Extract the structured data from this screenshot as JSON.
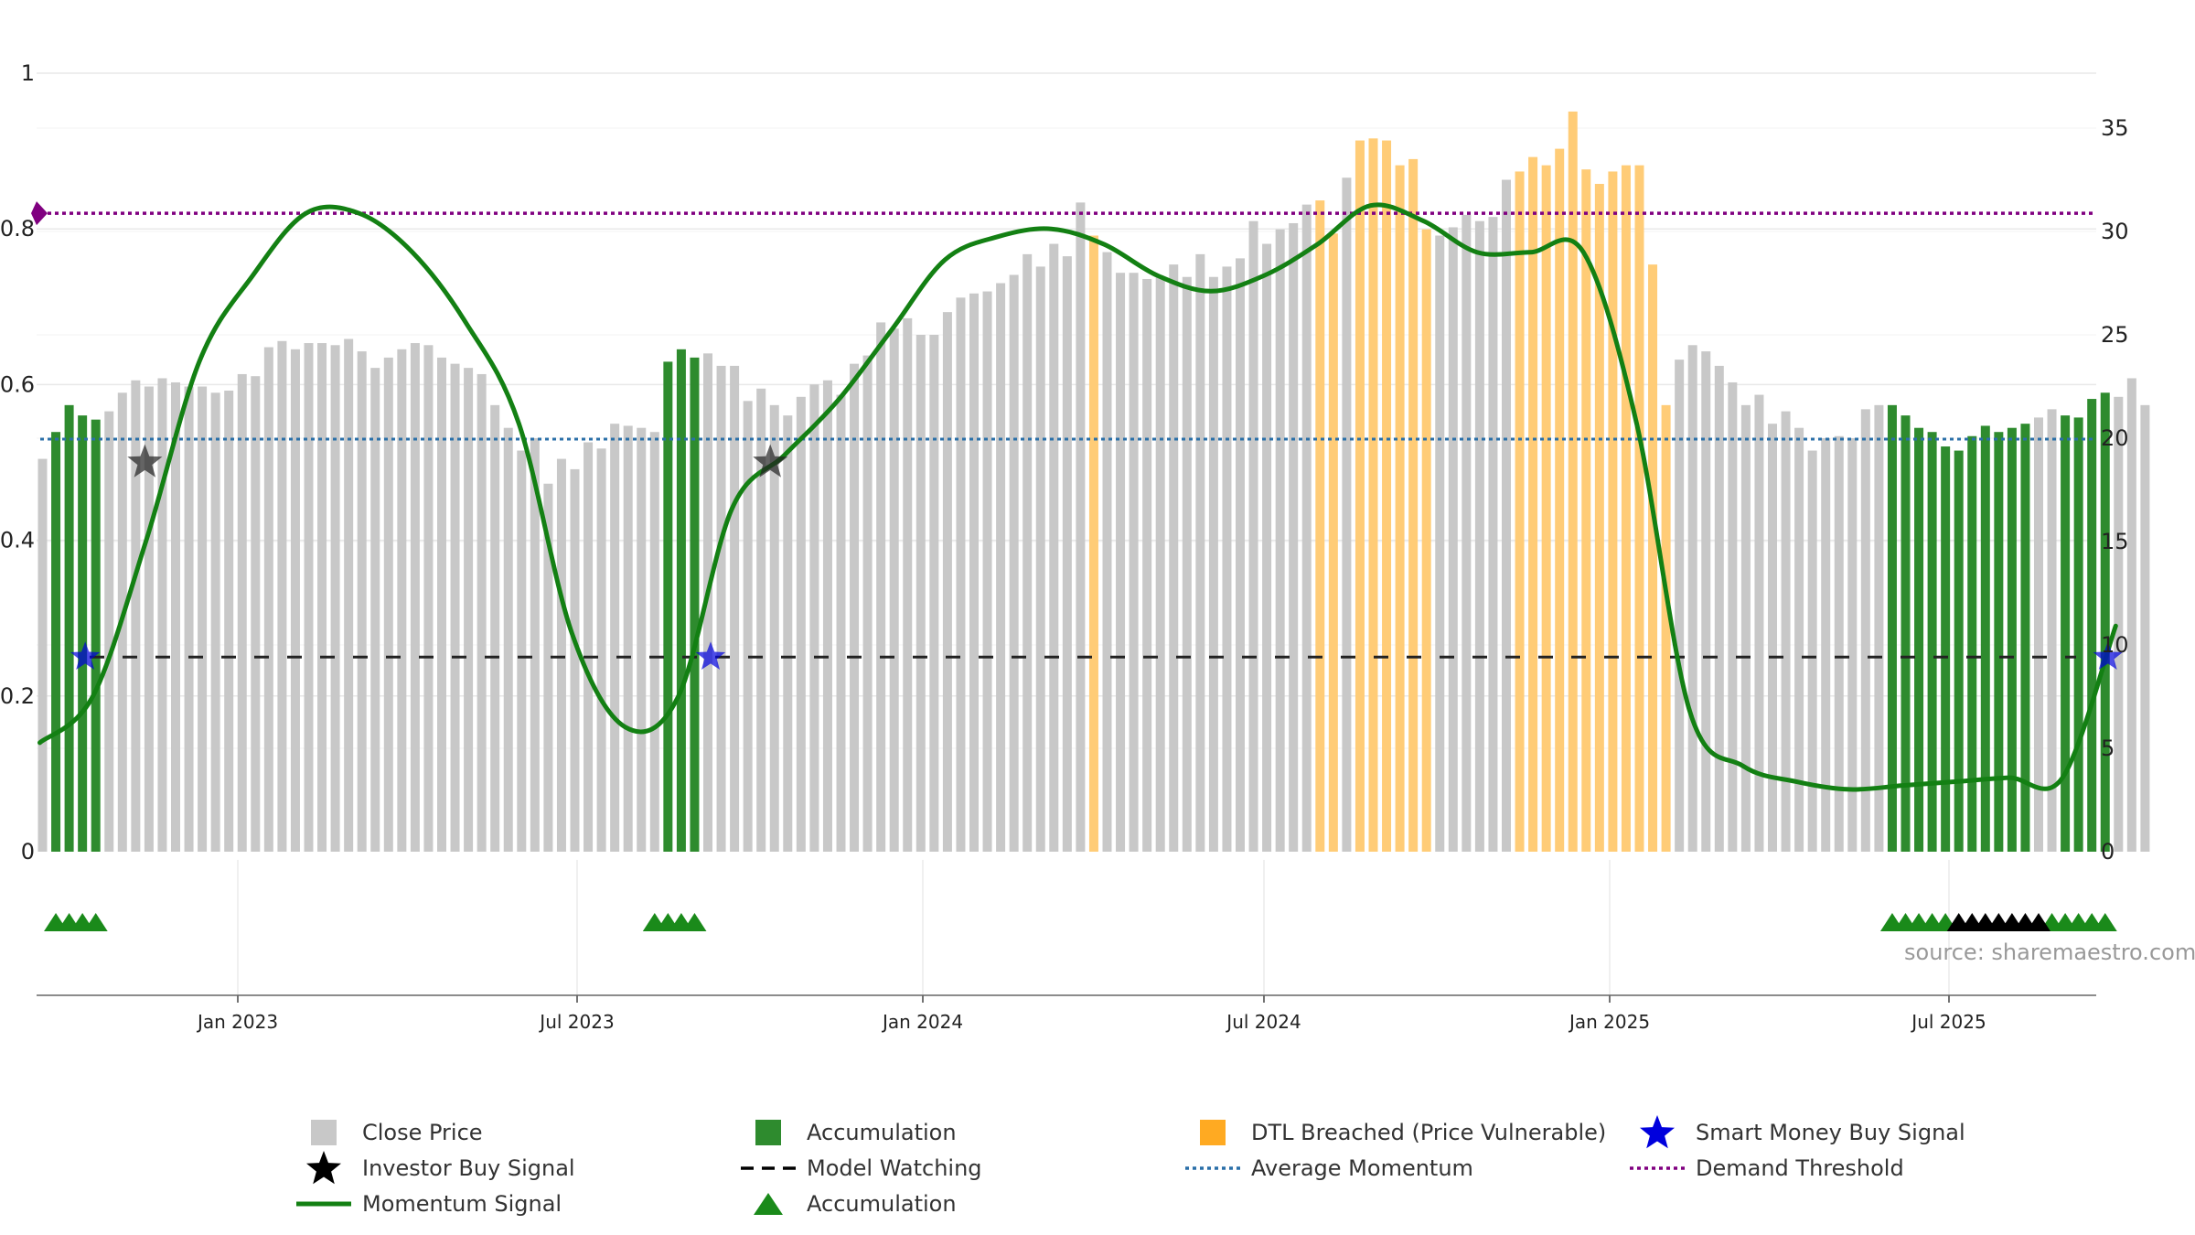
{
  "source_text": "source: sharemaestro.com",
  "colors": {
    "close": "#c8c8c8",
    "accumulation": "#2e8b2e",
    "dtl": "#ffcc77",
    "momentum": "#138013",
    "average": "#2a6fa8",
    "demand": "#800080",
    "model_watching": "#222222",
    "smart_money": "#0000dd",
    "investor": "#222222",
    "triangle_green": "#1a8a1a",
    "triangle_black": "#000000",
    "grid": "#e8e8e8"
  },
  "legend": [
    {
      "label": "Close Price",
      "icon": "square-gray"
    },
    {
      "label": "Accumulation",
      "icon": "square-green"
    },
    {
      "label": "DTL Breached (Price Vulnerable)",
      "icon": "square-orange"
    },
    {
      "label": "Smart Money Buy Signal",
      "icon": "star-blue"
    },
    {
      "label": "Investor Buy Signal",
      "icon": "star-black"
    },
    {
      "label": "Model Watching",
      "icon": "dash-black"
    },
    {
      "label": "Average Momentum",
      "icon": "dot-blue"
    },
    {
      "label": "Demand Threshold",
      "icon": "dot-purple"
    },
    {
      "label": "Momentum Signal",
      "icon": "line-green"
    },
    {
      "label": "Accumulation",
      "icon": "triangle-green"
    }
  ],
  "chart_data": {
    "type": "bar",
    "x_axis": {
      "tick_labels": [
        "Jan 2023",
        "Jul 2023",
        "Jan 2024",
        "Jul 2024",
        "Jan 2025",
        "Jul 2025"
      ]
    },
    "y_left": {
      "range": [
        0,
        1
      ],
      "tick_labels": [
        "0",
        "0.2",
        "0.4",
        "0.6",
        "0.8",
        "1"
      ]
    },
    "y_right": {
      "range": [
        0,
        38
      ],
      "tick_labels": [
        "0",
        "5",
        "10",
        "15",
        "20",
        "25",
        "30",
        "35"
      ]
    },
    "close_price": [
      19,
      20.3,
      21.6,
      21.1,
      20.9,
      21.3,
      22.2,
      22.8,
      22.5,
      22.9,
      22.7,
      22.5,
      22.5,
      22.2,
      22.3,
      23.1,
      23,
      24.4,
      24.7,
      24.3,
      24.6,
      24.6,
      24.5,
      24.8,
      24.2,
      23.4,
      23.9,
      24.3,
      24.6,
      24.5,
      23.9,
      23.6,
      23.4,
      23.1,
      21.6,
      20.5,
      19.4,
      20,
      17.8,
      19,
      18.5,
      19.8,
      19.5,
      20.7,
      20.6,
      20.5,
      20.3,
      23.7,
      24.3,
      23.9,
      24.1,
      23.5,
      23.5,
      21.8,
      22.4,
      21.6,
      21.1,
      22,
      22.6,
      22.8,
      22.1,
      23.6,
      24,
      25.6,
      25.3,
      25.8,
      25,
      25,
      26.1,
      26.8,
      27,
      27.1,
      27.5,
      27.9,
      28.9,
      28.3,
      29.4,
      28.8,
      31.4,
      29.8,
      29,
      28,
      28,
      27.7,
      27.8,
      28.4,
      27.8,
      28.9,
      27.8,
      28.3,
      28.7,
      30.5,
      29.4,
      30.1,
      30.4,
      31.3,
      31.5,
      29.9,
      32.6,
      34.4,
      34.5,
      34.4,
      33.2,
      33.5,
      30.1,
      29.8,
      30.2,
      30.8,
      30.5,
      30.7,
      32.5,
      32.9,
      33.6,
      33.2,
      34,
      35.8,
      33,
      32.3,
      32.9,
      33.2,
      33.2,
      28.4,
      21.6,
      23.8,
      24.5,
      24.2,
      23.5,
      22.7,
      21.6,
      22.1,
      20.7,
      21.3,
      20.5,
      19.4,
      20,
      20.1,
      20,
      21.4,
      21.6,
      21.6,
      21.1,
      20.5,
      20.3,
      19.6,
      19.4,
      20.1,
      20.6,
      20.3,
      20.5,
      20.7,
      21,
      21.4,
      21.1,
      21,
      21.9,
      22.2,
      22,
      22.9,
      21.6
    ],
    "accumulation_bar_indices": [
      1,
      2,
      3,
      4,
      47,
      48,
      49,
      139,
      140,
      141,
      142,
      143,
      144,
      145,
      146,
      147,
      148,
      149,
      152,
      153,
      154,
      155
    ],
    "dtl_breached_bar_indices": [
      79,
      96,
      97,
      99,
      100,
      101,
      102,
      103,
      104,
      111,
      112,
      113,
      114,
      115,
      116,
      117,
      118,
      119,
      120,
      121,
      122
    ],
    "momentum_signal": {
      "x": [
        0,
        4,
        8,
        12,
        16,
        20,
        24,
        28,
        32,
        36,
        40,
        44,
        48,
        52,
        56,
        60,
        64,
        68,
        72,
        76,
        80,
        84,
        88,
        92,
        96,
        100,
        104,
        108,
        112,
        116,
        120,
        124,
        128,
        132,
        136,
        140,
        144,
        148,
        152,
        156
      ],
      "y": [
        0.14,
        0.2,
        0.4,
        0.63,
        0.74,
        0.82,
        0.82,
        0.77,
        0.68,
        0.55,
        0.28,
        0.16,
        0.2,
        0.44,
        0.51,
        0.58,
        0.67,
        0.76,
        0.79,
        0.8,
        0.78,
        0.74,
        0.72,
        0.74,
        0.78,
        0.83,
        0.81,
        0.77,
        0.77,
        0.77,
        0.55,
        0.18,
        0.11,
        0.09,
        0.08,
        0.085,
        0.09,
        0.095,
        0.095,
        0.29
      ]
    },
    "average_momentum": 0.53,
    "demand_threshold": 0.82,
    "model_watching": 0.25,
    "smart_money_buy_signal_bar_indices": [
      3,
      50,
      155
    ],
    "investor_buy_signal_bar_indices": [
      7,
      54
    ],
    "accumulation_triangles": {
      "green_bar_indices": [
        1,
        2,
        3,
        4,
        46,
        47,
        48,
        49,
        139,
        140,
        141,
        142,
        143,
        151,
        152,
        153,
        154,
        155
      ],
      "black_bar_indices": [
        144,
        145,
        146,
        147,
        148,
        149,
        150
      ]
    },
    "grid": true,
    "legend_position": "bottom"
  }
}
